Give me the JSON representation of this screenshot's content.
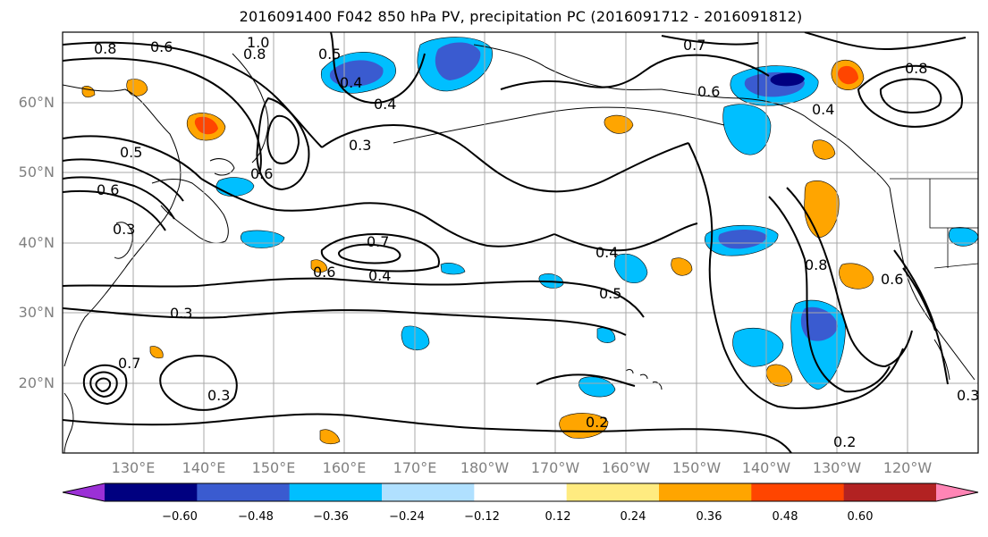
{
  "title": "2016091400 F042 850 hPa PV, precipitation PC (2016091712 - 2016091812)",
  "latitude_labels": [
    "60°N",
    "50°N",
    "40°N",
    "30°N",
    "20°N"
  ],
  "longitude_labels": [
    "130°E",
    "140°E",
    "150°E",
    "160°E",
    "170°E",
    "180°W",
    "170°W",
    "160°W",
    "150°W",
    "140°W",
    "130°W",
    "120°W"
  ],
  "contour_labels": [
    "0.8",
    "0.6",
    "1.0",
    "0.8",
    "0.5",
    "0.4",
    "0.4",
    "0.3",
    "0.5",
    "0.6",
    "0.6",
    "0.3",
    "0.7",
    "0.6",
    "0.4",
    "0.4",
    "0.5",
    "0.3",
    "0.7",
    "0.6",
    "0.8",
    "0.6",
    "0.3",
    "0.2",
    "0.2",
    "0.3",
    "0.8",
    "0.7",
    "0.4"
  ],
  "colorbar": {
    "tick_labels": [
      "−0.60",
      "−0.48",
      "−0.36",
      "−0.24",
      "−0.12",
      "0.12",
      "0.24",
      "0.36",
      "0.48",
      "0.60"
    ],
    "colors": [
      "#9b30d6",
      "#000080",
      "#3a5bd0",
      "#00bfff",
      "#b0e0ff",
      "#ffffff",
      "#ffeb80",
      "#ffa500",
      "#ff4500",
      "#b22222",
      "#ff85b5"
    ]
  },
  "colors": {
    "contour": "#000000",
    "coastline": "#000000",
    "gridline": "#a9a9a9",
    "axis_label": "#808080"
  }
}
